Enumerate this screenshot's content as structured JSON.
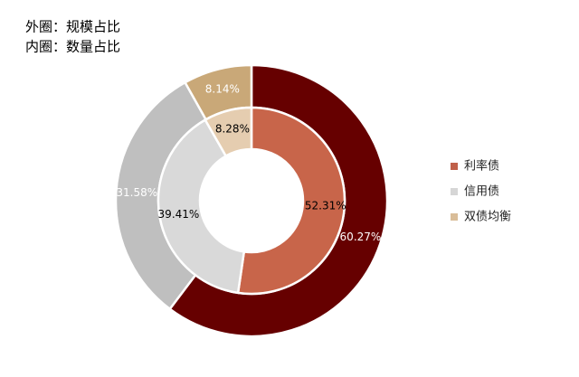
{
  "chart_data": {
    "type": "donut",
    "categories": [
      "利率债",
      "信用债",
      "双债均衡"
    ],
    "legend_colors": [
      "#c0604a",
      "#d6d6d6",
      "#d9bd99"
    ],
    "series": [
      {
        "name": "外圈：规模占比",
        "values": [
          60.27,
          31.58,
          8.14
        ],
        "value_labels": [
          "60.27%",
          "31.58%",
          "8.14%"
        ],
        "colors": [
          "#660000",
          "#bfbfbf",
          "#c9a878"
        ]
      },
      {
        "name": "内圈：数量占比",
        "values": [
          52.31,
          39.41,
          8.28
        ],
        "value_labels": [
          "52.31%",
          "39.41%",
          "8.28%"
        ],
        "colors": [
          "#c8654a",
          "#d9d9d9",
          "#e5cdb0"
        ]
      }
    ]
  }
}
